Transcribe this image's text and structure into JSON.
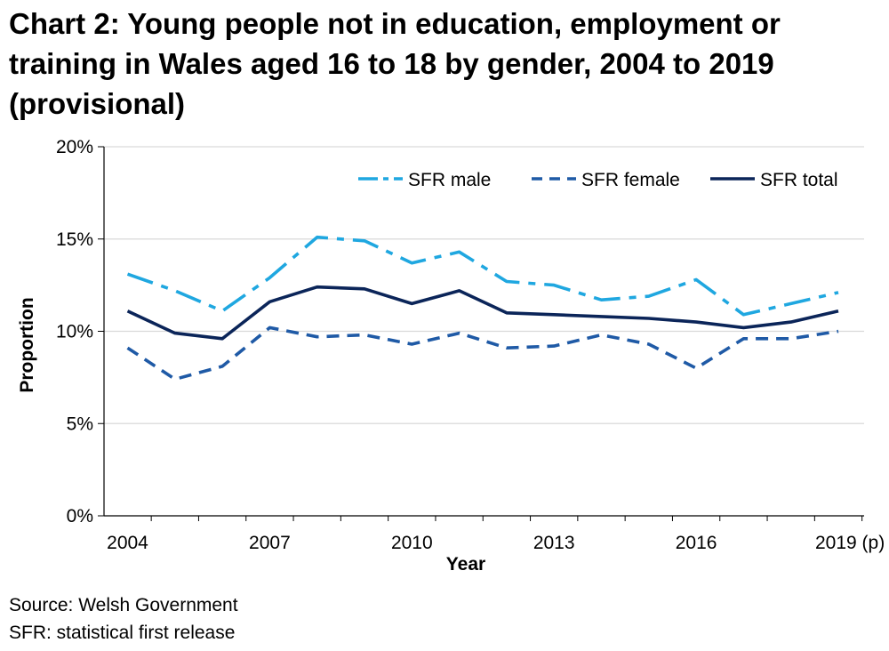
{
  "chart_data": {
    "type": "line",
    "title": "Chart 2: Young people not in education, employment or training in Wales aged 16 to 18 by gender, 2004 to 2019 (provisional)",
    "xlabel": "Year",
    "ylabel": "Proportion",
    "x": [
      2004,
      2005,
      2006,
      2007,
      2008,
      2009,
      2010,
      2011,
      2012,
      2013,
      2014,
      2015,
      2016,
      2017,
      2018,
      2019
    ],
    "xtick_labels": [
      "2004",
      "2007",
      "2010",
      "2013",
      "2016",
      "2019 (p)"
    ],
    "xtick_values": [
      2004,
      2007,
      2010,
      2013,
      2016,
      2019
    ],
    "yticks": [
      "0%",
      "5%",
      "10%",
      "15%",
      "20%"
    ],
    "ylim": [
      0,
      20
    ],
    "grid": "horizontal",
    "legend_position": "top-right",
    "series": [
      {
        "name": "SFR male",
        "color": "#1fa7e0",
        "dash": "long-dash-dot",
        "values": [
          13.1,
          12.2,
          11.1,
          12.9,
          15.1,
          14.9,
          13.7,
          14.3,
          12.7,
          12.5,
          11.7,
          11.9,
          12.8,
          10.9,
          11.5,
          12.1
        ]
      },
      {
        "name": "SFR female",
        "color": "#1f5aa6",
        "dash": "dash",
        "values": [
          9.1,
          7.4,
          8.1,
          10.2,
          9.7,
          9.8,
          9.3,
          9.9,
          9.1,
          9.2,
          9.8,
          9.3,
          8.0,
          9.6,
          9.6,
          10.0
        ]
      },
      {
        "name": "SFR total",
        "color": "#0b2559",
        "dash": "solid",
        "values": [
          11.1,
          9.9,
          9.6,
          11.6,
          12.4,
          12.3,
          11.5,
          12.2,
          11.0,
          10.9,
          10.8,
          10.7,
          10.5,
          10.2,
          10.5,
          11.1
        ]
      }
    ]
  },
  "footer": {
    "source": "Source: Welsh Government",
    "note": "SFR: statistical first release"
  }
}
